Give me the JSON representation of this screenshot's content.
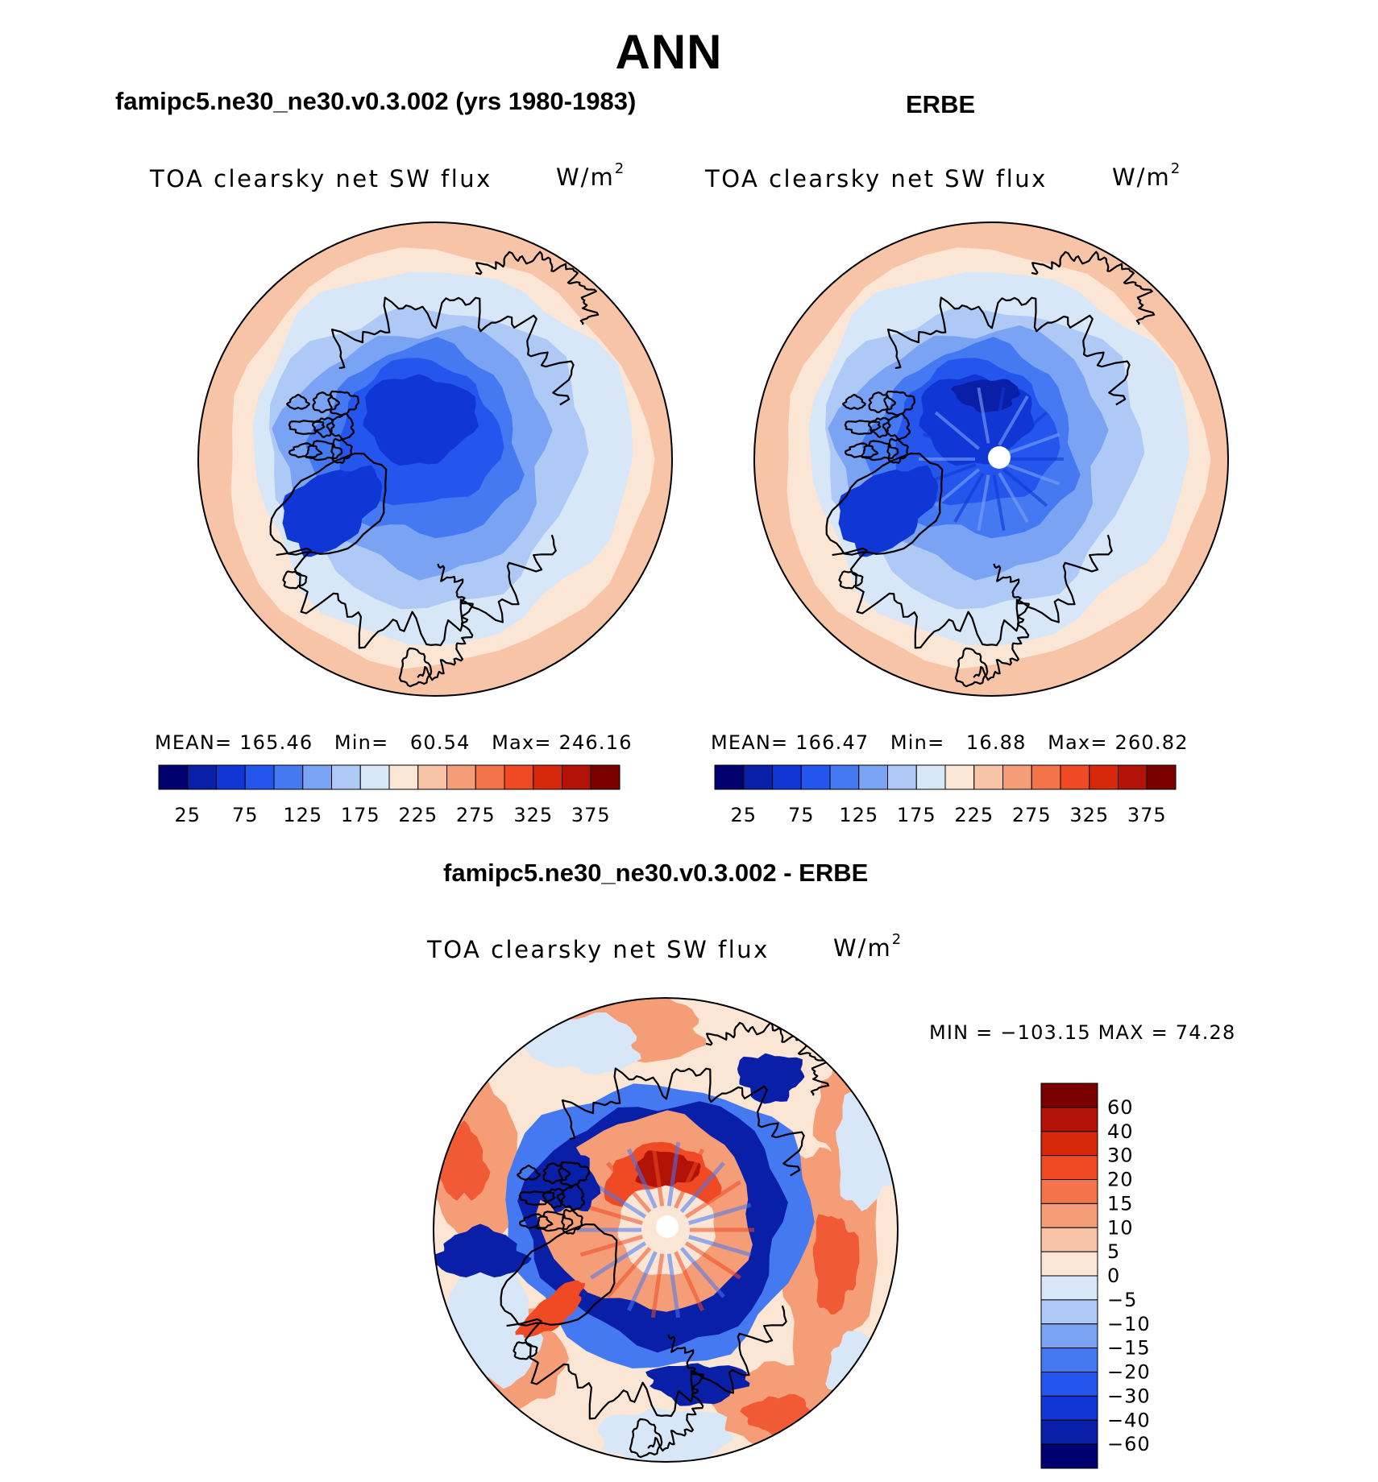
{
  "figure": {
    "season": "ANN",
    "variable": "TOA clearsky net SW flux",
    "units_base": "W/m",
    "units_exp": "2"
  },
  "panels": {
    "model": {
      "title": "famipc5.ne30_ne30.v0.3.002 (yrs 1980-1983)",
      "stats": {
        "mean": "165.46",
        "min": "60.54",
        "max": "246.16"
      }
    },
    "obs": {
      "title": "ERBE",
      "stats": {
        "mean": "166.47",
        "min": "16.88",
        "max": "260.82"
      }
    },
    "diff": {
      "title": "famipc5.ne30_ne30.v0.3.002 - ERBE",
      "stats_text": "MIN = −103.15  MAX =  74.28"
    }
  },
  "labels": {
    "mean": "MEAN=",
    "min": "Min=",
    "max": "Max="
  },
  "colorbar_main": {
    "colors": [
      "#00006e",
      "#0a1fa8",
      "#1037d6",
      "#2456ee",
      "#4579f2",
      "#7aa3f3",
      "#aec9f5",
      "#d7e7f8",
      "#fbe6d6",
      "#f7c4a8",
      "#f59d77",
      "#f4744a",
      "#ef4a24",
      "#d8280c",
      "#b31207",
      "#7a0000"
    ],
    "ticks": [
      "25",
      "75",
      "125",
      "175",
      "225",
      "275",
      "325",
      "375"
    ]
  },
  "colorbar_diff": {
    "colors": [
      "#7a0000",
      "#b31207",
      "#d8280c",
      "#ef4a24",
      "#f4744a",
      "#f59d77",
      "#f7c4a8",
      "#fbe6d6",
      "#d7e7f8",
      "#aec9f5",
      "#7aa3f3",
      "#4579f2",
      "#2456ee",
      "#1037d6",
      "#0a1fa8",
      "#00006e"
    ],
    "ticks": [
      "60",
      "40",
      "30",
      "20",
      "15",
      "10",
      "5",
      "0",
      "−5",
      "−10",
      "−15",
      "−20",
      "−30",
      "−40",
      "−60"
    ]
  },
  "map_colors": {
    "outer": "#f7c4a8",
    "ring_warm": "#fbe6d6",
    "ring1": "#d7e7f8",
    "ring2": "#aec9f5",
    "ring3": "#7aa3f3",
    "ring4": "#4579f2",
    "core": "#2456ee",
    "deep": "#1037d6",
    "darkest": "#0a1fa8",
    "coast": "#000000",
    "missing": "#ffffff",
    "diff_pos_strong": "#ef4a24",
    "diff_pos": "#f59d77",
    "diff_pos_weak": "#fbe6d6",
    "diff_neg_weak": "#d7e7f8",
    "diff_neg": "#4579f2",
    "diff_neg_strong": "#0a1fa8",
    "diff_pos_max": "#b31207"
  }
}
